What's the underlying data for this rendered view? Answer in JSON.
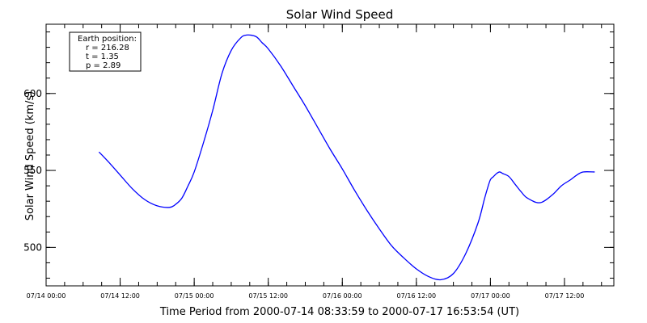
{
  "chart_data": {
    "type": "line",
    "title": "Solar Wind Speed",
    "xlabel": "Time Period from 2000-07-14 08:33:59 to 2000-07-17 16:53:54 (UT)",
    "ylabel": "Solar Wind Speed (km/s)",
    "x_unit": "hours after 07/14 00:00",
    "xlim": [
      0,
      92
    ],
    "ylim": [
      475,
      645
    ],
    "x_ticks": [
      {
        "value": 0,
        "label": "07/14 00:00"
      },
      {
        "value": 12,
        "label": "07/14 12:00"
      },
      {
        "value": 24,
        "label": "07/15 00:00"
      },
      {
        "value": 36,
        "label": "07/15 12:00"
      },
      {
        "value": 48,
        "label": "07/16 00:00"
      },
      {
        "value": 60,
        "label": "07/16 12:00"
      },
      {
        "value": 72,
        "label": "07/17 00:00"
      },
      {
        "value": 84,
        "label": "07/17 12:00"
      }
    ],
    "y_ticks": [
      {
        "value": 500,
        "label": "500"
      },
      {
        "value": 550,
        "label": "550"
      },
      {
        "value": 600,
        "label": "600"
      }
    ],
    "legend_position": "top-left",
    "grid": false,
    "series": [
      {
        "color": "#0000ff",
        "x": [
          8.57,
          10,
          12,
          14,
          16,
          18,
          20,
          21,
          22,
          23,
          24,
          25.5,
          27,
          28.5,
          30,
          31.5,
          32.5,
          34,
          35,
          36,
          38,
          40,
          42,
          44,
          46,
          48,
          50,
          52,
          54,
          56,
          58,
          60,
          62,
          64,
          66,
          68,
          70,
          71,
          71.5,
          72,
          72.5,
          73,
          73.5,
          74,
          75,
          76,
          77,
          78,
          80,
          82,
          83.5,
          85,
          86,
          87,
          88.9
        ],
        "y": [
          562,
          556,
          547,
          538,
          531,
          527,
          526,
          528,
          532,
          540,
          549,
          568,
          589,
          613,
          628,
          636,
          638,
          637,
          633,
          629,
          618,
          605,
          592,
          578,
          564,
          551,
          537,
          524,
          512,
          501,
          493,
          486,
          481,
          479,
          483,
          496,
          516,
          531,
          538,
          544,
          546,
          548,
          549,
          548,
          546,
          541,
          536,
          532,
          529,
          534,
          540,
          544,
          547,
          549,
          549
        ]
      }
    ]
  },
  "legend": {
    "title": "Earth position:",
    "lines": [
      "r = 216.28",
      "t = 1.35",
      "p = 2.89"
    ]
  }
}
